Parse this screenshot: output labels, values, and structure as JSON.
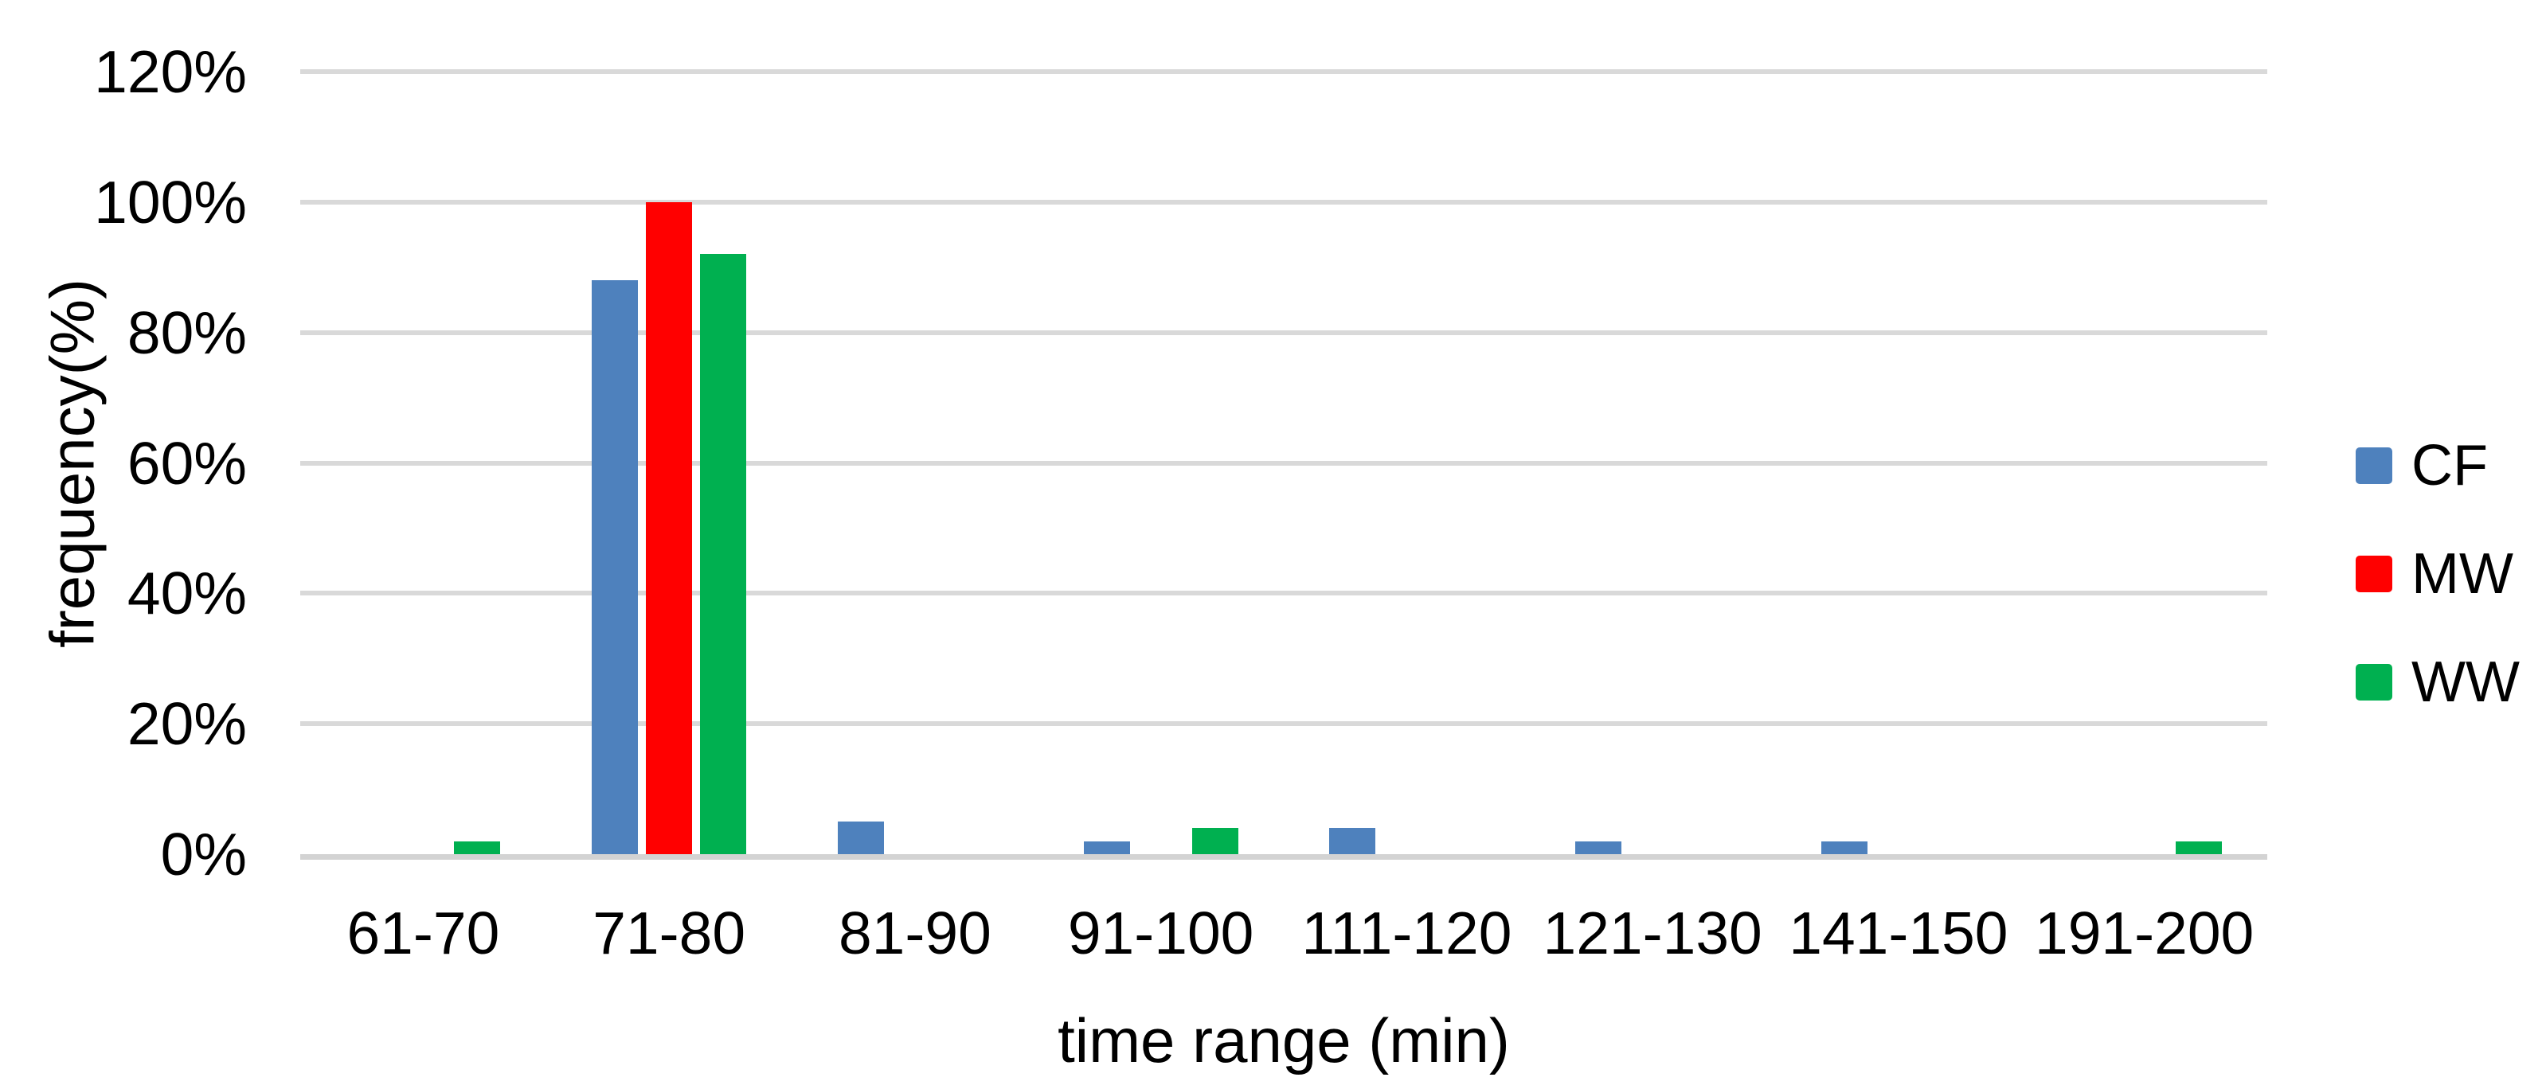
{
  "chart_data": {
    "type": "bar",
    "title": "",
    "xlabel": "time range (min)",
    "ylabel": "frequency(%)",
    "categories": [
      "61-70",
      "71-80",
      "81-90",
      "91-100",
      "111-120",
      "121-130",
      "141-150",
      "191-200"
    ],
    "series": [
      {
        "name": "CF",
        "color": "#4E81BD",
        "values": [
          0,
          88,
          5,
          2,
          4,
          2,
          2,
          0
        ]
      },
      {
        "name": "MW",
        "color": "#FF0000",
        "values": [
          0,
          100,
          0,
          0,
          0,
          0,
          0,
          0
        ]
      },
      {
        "name": "WW",
        "color": "#00B050",
        "values": [
          2,
          92,
          0,
          4,
          0,
          0,
          0,
          2
        ]
      }
    ],
    "y_ticks": [
      "0%",
      "20%",
      "40%",
      "60%",
      "80%",
      "100%",
      "120%"
    ],
    "ylim": [
      0,
      120
    ],
    "y_tick_step": 20,
    "grid": "horizontal",
    "legend_position": "right",
    "gridline_color": "#D9D9D9",
    "axis_line_color": "#D3D3D3",
    "background_color": "#FFFFFF",
    "text_color": "#000000"
  }
}
